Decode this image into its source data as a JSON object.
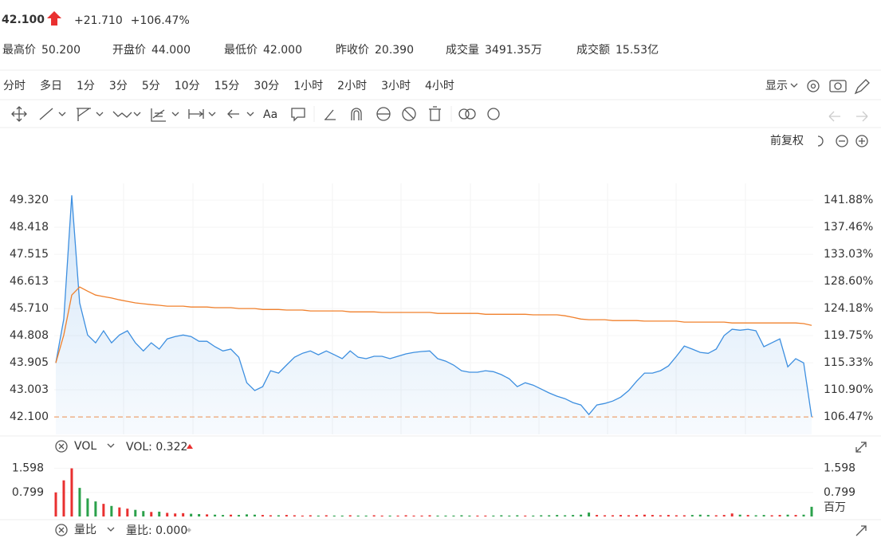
{
  "header": {
    "price": "42.100",
    "change": "+21.710",
    "change_pct": "+106.47%",
    "color": "#e93030"
  },
  "stats": [
    {
      "label": "最高价",
      "value": "50.200",
      "color": "#e93030"
    },
    {
      "label": "开盘价",
      "value": "44.000",
      "color": "#e93030"
    },
    {
      "label": "最低价",
      "value": "42.000",
      "color": "#e93030"
    },
    {
      "label": "昨收价",
      "value": "20.390",
      "color": "#333333"
    },
    {
      "label": "成交量",
      "value": "3491.35万",
      "color": "#333333"
    },
    {
      "label": "成交额",
      "value": "15.53亿",
      "color": "#333333"
    }
  ],
  "timeframes": {
    "items": [
      "分时",
      "多日",
      "1分",
      "3分",
      "5分",
      "10分",
      "15分",
      "30分",
      "1小时",
      "2小时",
      "3小时",
      "4小时"
    ],
    "active": 0,
    "active_color": "#f0802c"
  },
  "display_menu": "显示",
  "toolbar": {
    "text_tool": "Aa"
  },
  "adjust_mode": "前复权",
  "price_chart": {
    "type": "line",
    "ylim": [
      41.52,
      49.88
    ],
    "y2lim": [
      103.61,
      144.6
    ],
    "yticks": [
      {
        "value": 49.32,
        "label": "49.320"
      },
      {
        "value": 48.418,
        "label": "48.418"
      },
      {
        "value": 47.515,
        "label": "47.515"
      },
      {
        "value": 46.613,
        "label": "46.613"
      },
      {
        "value": 45.71,
        "label": "45.710"
      },
      {
        "value": 44.808,
        "label": "44.808"
      },
      {
        "value": 43.905,
        "label": "43.905"
      },
      {
        "value": 43.003,
        "label": "43.003"
      },
      {
        "value": 42.1,
        "label": "42.100"
      }
    ],
    "y2ticks": [
      {
        "value": 141.88,
        "label": "141.88%"
      },
      {
        "value": 137.46,
        "label": "137.46%"
      },
      {
        "value": 133.03,
        "label": "133.03%"
      },
      {
        "value": 128.6,
        "label": "128.60%"
      },
      {
        "value": 124.18,
        "label": "124.18%"
      },
      {
        "value": 119.75,
        "label": "119.75%"
      },
      {
        "value": 115.33,
        "label": "115.33%"
      },
      {
        "value": 110.9,
        "label": "110.90%"
      },
      {
        "value": 106.47,
        "label": "106.47%"
      }
    ],
    "reference_tick": 8,
    "tick_color": "#e93030",
    "series": [
      {
        "color": "#3d8fe0",
        "values": [
          43.9,
          45.36,
          49.48,
          45.9,
          44.83,
          44.57,
          44.97,
          44.57,
          44.83,
          44.97,
          44.57,
          44.3,
          44.57,
          44.36,
          44.7,
          44.78,
          44.83,
          44.78,
          44.62,
          44.62,
          44.44,
          44.3,
          44.36,
          44.09,
          43.24,
          42.98,
          43.11,
          43.64,
          43.56,
          43.83,
          44.09,
          44.22,
          44.3,
          44.17,
          44.3,
          44.17,
          44.04,
          44.3,
          44.09,
          44.04,
          44.12,
          44.12,
          44.04,
          44.12,
          44.2,
          44.25,
          44.28,
          44.3,
          44.04,
          43.96,
          43.83,
          43.64,
          43.59,
          43.59,
          43.64,
          43.61,
          43.51,
          43.37,
          43.11,
          43.24,
          43.16,
          43.03,
          42.9,
          42.79,
          42.71,
          42.58,
          42.5,
          42.18,
          42.5,
          42.55,
          42.63,
          42.76,
          42.98,
          43.29,
          43.56,
          43.56,
          43.64,
          43.8,
          44.12,
          44.46,
          44.36,
          44.25,
          44.22,
          44.36,
          44.81,
          45.02,
          44.99,
          45.02,
          44.97,
          44.44,
          44.57,
          44.7,
          43.77,
          44.04,
          43.9,
          42.1
        ]
      },
      {
        "color": "#f0802c",
        "values": [
          43.9,
          44.83,
          46.16,
          46.43,
          46.29,
          46.16,
          46.11,
          46.06,
          46.0,
          45.95,
          45.9,
          45.87,
          45.84,
          45.82,
          45.79,
          45.79,
          45.79,
          45.76,
          45.76,
          45.76,
          45.74,
          45.74,
          45.74,
          45.71,
          45.71,
          45.71,
          45.68,
          45.68,
          45.68,
          45.66,
          45.66,
          45.66,
          45.63,
          45.63,
          45.63,
          45.63,
          45.63,
          45.6,
          45.6,
          45.6,
          45.6,
          45.58,
          45.58,
          45.58,
          45.58,
          45.58,
          45.58,
          45.58,
          45.55,
          45.55,
          45.55,
          45.55,
          45.55,
          45.55,
          45.52,
          45.52,
          45.52,
          45.52,
          45.52,
          45.52,
          45.5,
          45.5,
          45.5,
          45.5,
          45.47,
          45.42,
          45.36,
          45.34,
          45.34,
          45.34,
          45.31,
          45.31,
          45.31,
          45.31,
          45.29,
          45.29,
          45.29,
          45.29,
          45.29,
          45.26,
          45.26,
          45.26,
          45.26,
          45.26,
          45.26,
          45.23,
          45.23,
          45.23,
          45.23,
          45.23,
          45.23,
          45.23,
          45.23,
          45.23,
          45.21,
          45.15
        ]
      }
    ]
  },
  "volume_chart": {
    "type": "bar",
    "indicator": "VOL",
    "indicator_label": "VOL: 0.322",
    "unit": "百万",
    "ylim": [
      0,
      1.8
    ],
    "yticks": [
      1.598,
      0.799
    ],
    "up_color": "#e93030",
    "down_color": "#2ba14b",
    "values": [
      0.8,
      1.2,
      1.6,
      0.95,
      0.6,
      0.5,
      0.42,
      0.35,
      0.3,
      0.26,
      0.22,
      0.18,
      0.15,
      0.16,
      0.12,
      0.1,
      0.11,
      0.09,
      0.08,
      0.07,
      0.06,
      0.05,
      0.06,
      0.05,
      0.07,
      0.06,
      0.05,
      0.04,
      0.04,
      0.05,
      0.04,
      0.03,
      0.04,
      0.03,
      0.04,
      0.03,
      0.03,
      0.04,
      0.03,
      0.03,
      0.04,
      0.03,
      0.03,
      0.03,
      0.04,
      0.03,
      0.03,
      0.04,
      0.03,
      0.03,
      0.03,
      0.04,
      0.03,
      0.03,
      0.03,
      0.03,
      0.04,
      0.03,
      0.04,
      0.03,
      0.03,
      0.04,
      0.04,
      0.05,
      0.04,
      0.05,
      0.06,
      0.13,
      0.05,
      0.04,
      0.04,
      0.05,
      0.04,
      0.05,
      0.06,
      0.05,
      0.04,
      0.05,
      0.04,
      0.04,
      0.05,
      0.06,
      0.05,
      0.04,
      0.05,
      0.1,
      0.06,
      0.05,
      0.04,
      0.05,
      0.04,
      0.05,
      0.06,
      0.05,
      0.06,
      0.322
    ]
  },
  "ratio_panel": {
    "name": "量比",
    "value_label": "量比: 0.000"
  }
}
